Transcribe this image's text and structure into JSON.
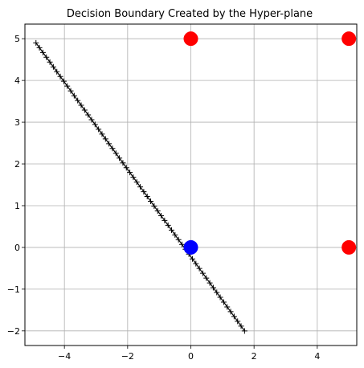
{
  "chart_data": {
    "type": "scatter",
    "title": "Decision Boundary Created by the Hyper-plane",
    "xlabel": "",
    "ylabel": "",
    "xlim": [
      -5.25,
      5.25
    ],
    "ylim": [
      -2.35,
      5.35
    ],
    "xticks": [
      -4,
      -2,
      0,
      2,
      4
    ],
    "yticks": [
      -2,
      -1,
      0,
      1,
      2,
      3,
      4,
      5
    ],
    "xtick_labels": [
      "−4",
      "−2",
      "0",
      "2",
      "4"
    ],
    "ytick_labels": [
      "−2",
      "−1",
      "0",
      "1",
      "2",
      "3",
      "4",
      "5"
    ],
    "grid": true,
    "series": [
      {
        "marker": "circle",
        "color": "#ff0000",
        "points": [
          [
            0,
            5
          ],
          [
            5,
            5
          ],
          [
            5,
            0
          ]
        ]
      },
      {
        "marker": "circle",
        "color": "#0000ff",
        "points": [
          [
            0,
            0
          ]
        ]
      },
      {
        "marker": "plus-line",
        "color": "#000000",
        "line": [
          [
            -4.9,
            4.9
          ],
          [
            1.7,
            -2.0
          ]
        ]
      }
    ]
  }
}
